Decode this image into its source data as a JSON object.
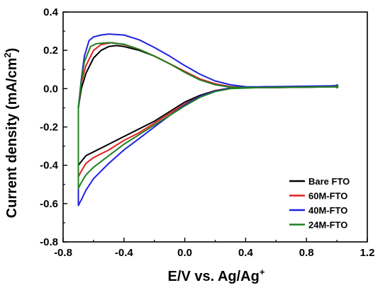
{
  "chart_data": {
    "type": "line",
    "xlabel": "E/V vs. Ag/Ag",
    "xlabel_sup": "+",
    "ylabel": "Current density (mA/cm",
    "ylabel_sup": "2",
    "ylabel_close": ")",
    "xlim": [
      -0.8,
      1.2
    ],
    "ylim": [
      -0.8,
      0.4
    ],
    "xticks": [
      -0.8,
      -0.4,
      0.0,
      0.4,
      0.8,
      1.2
    ],
    "xtick_labels": [
      "-0.8",
      "-0.4",
      "0.0",
      "0.4",
      "0.8",
      "1.2"
    ],
    "yticks": [
      -0.8,
      -0.6,
      -0.4,
      -0.2,
      0.0,
      0.2,
      0.4
    ],
    "ytick_labels": [
      "-0.8",
      "-0.6",
      "-0.4",
      "-0.2",
      "0.0",
      "0.2",
      "0.4"
    ],
    "grid": false,
    "legend_position": "bottom-right",
    "series": [
      {
        "name": "Bare FTO",
        "color": "#000000",
        "points": [
          [
            1.0,
            0.01
          ],
          [
            0.8,
            0.008
          ],
          [
            0.6,
            0.006
          ],
          [
            0.4,
            0.006
          ],
          [
            0.3,
            0.01
          ],
          [
            0.2,
            0.025
          ],
          [
            0.1,
            0.05
          ],
          [
            0.0,
            0.09
          ],
          [
            -0.1,
            0.13
          ],
          [
            -0.2,
            0.17
          ],
          [
            -0.3,
            0.2
          ],
          [
            -0.4,
            0.22
          ],
          [
            -0.45,
            0.225
          ],
          [
            -0.5,
            0.22
          ],
          [
            -0.55,
            0.2
          ],
          [
            -0.6,
            0.16
          ],
          [
            -0.65,
            0.08
          ],
          [
            -0.68,
            0.0
          ],
          [
            -0.7,
            -0.1
          ],
          [
            -0.7,
            -0.25
          ],
          [
            -0.7,
            -0.4
          ],
          [
            -0.68,
            -0.38
          ],
          [
            -0.65,
            -0.35
          ],
          [
            -0.6,
            -0.33
          ],
          [
            -0.5,
            -0.29
          ],
          [
            -0.4,
            -0.25
          ],
          [
            -0.3,
            -0.21
          ],
          [
            -0.2,
            -0.17
          ],
          [
            -0.1,
            -0.12
          ],
          [
            0.0,
            -0.07
          ],
          [
            0.1,
            -0.035
          ],
          [
            0.2,
            -0.01
          ],
          [
            0.3,
            0.003
          ],
          [
            0.5,
            0.006
          ],
          [
            0.7,
            0.008
          ],
          [
            1.0,
            0.01
          ]
        ]
      },
      {
        "name": "60M-FTO",
        "color": "#e02020",
        "points": [
          [
            1.0,
            0.01
          ],
          [
            0.8,
            0.008
          ],
          [
            0.6,
            0.006
          ],
          [
            0.4,
            0.006
          ],
          [
            0.3,
            0.01
          ],
          [
            0.2,
            0.025
          ],
          [
            0.1,
            0.05
          ],
          [
            0.0,
            0.09
          ],
          [
            -0.1,
            0.13
          ],
          [
            -0.2,
            0.17
          ],
          [
            -0.3,
            0.205
          ],
          [
            -0.4,
            0.23
          ],
          [
            -0.48,
            0.24
          ],
          [
            -0.55,
            0.23
          ],
          [
            -0.6,
            0.2
          ],
          [
            -0.65,
            0.12
          ],
          [
            -0.68,
            0.03
          ],
          [
            -0.7,
            -0.1
          ],
          [
            -0.7,
            -0.3
          ],
          [
            -0.7,
            -0.46
          ],
          [
            -0.68,
            -0.43
          ],
          [
            -0.65,
            -0.39
          ],
          [
            -0.6,
            -0.36
          ],
          [
            -0.5,
            -0.32
          ],
          [
            -0.4,
            -0.27
          ],
          [
            -0.3,
            -0.23
          ],
          [
            -0.2,
            -0.18
          ],
          [
            -0.1,
            -0.13
          ],
          [
            0.0,
            -0.08
          ],
          [
            0.1,
            -0.04
          ],
          [
            0.2,
            -0.01
          ],
          [
            0.3,
            0.003
          ],
          [
            0.5,
            0.006
          ],
          [
            0.7,
            0.008
          ],
          [
            1.0,
            0.01
          ]
        ]
      },
      {
        "name": "40M-FTO",
        "color": "#2020e0",
        "points": [
          [
            1.0,
            0.015
          ],
          [
            0.8,
            0.01
          ],
          [
            0.6,
            0.008
          ],
          [
            0.4,
            0.01
          ],
          [
            0.3,
            0.02
          ],
          [
            0.2,
            0.04
          ],
          [
            0.1,
            0.075
          ],
          [
            0.0,
            0.12
          ],
          [
            -0.1,
            0.17
          ],
          [
            -0.2,
            0.215
          ],
          [
            -0.3,
            0.255
          ],
          [
            -0.4,
            0.28
          ],
          [
            -0.5,
            0.285
          ],
          [
            -0.55,
            0.28
          ],
          [
            -0.6,
            0.27
          ],
          [
            -0.63,
            0.25
          ],
          [
            -0.66,
            0.17
          ],
          [
            -0.68,
            0.05
          ],
          [
            -0.7,
            -0.1
          ],
          [
            -0.7,
            -0.35
          ],
          [
            -0.7,
            -0.61
          ],
          [
            -0.68,
            -0.58
          ],
          [
            -0.65,
            -0.53
          ],
          [
            -0.6,
            -0.47
          ],
          [
            -0.5,
            -0.39
          ],
          [
            -0.4,
            -0.32
          ],
          [
            -0.3,
            -0.26
          ],
          [
            -0.2,
            -0.2
          ],
          [
            -0.1,
            -0.14
          ],
          [
            0.0,
            -0.085
          ],
          [
            0.1,
            -0.04
          ],
          [
            0.2,
            -0.012
          ],
          [
            0.3,
            0.003
          ],
          [
            0.5,
            0.01
          ],
          [
            0.7,
            0.012
          ],
          [
            1.0,
            0.015
          ]
        ]
      },
      {
        "name": "24M-FTO",
        "color": "#208020",
        "points": [
          [
            1.0,
            0.01
          ],
          [
            0.8,
            0.008
          ],
          [
            0.6,
            0.006
          ],
          [
            0.4,
            0.006
          ],
          [
            0.3,
            0.008
          ],
          [
            0.2,
            0.02
          ],
          [
            0.1,
            0.045
          ],
          [
            0.0,
            0.085
          ],
          [
            -0.1,
            0.13
          ],
          [
            -0.2,
            0.17
          ],
          [
            -0.3,
            0.205
          ],
          [
            -0.4,
            0.232
          ],
          [
            -0.5,
            0.24
          ],
          [
            -0.58,
            0.235
          ],
          [
            -0.62,
            0.22
          ],
          [
            -0.66,
            0.14
          ],
          [
            -0.68,
            0.04
          ],
          [
            -0.7,
            -0.1
          ],
          [
            -0.7,
            -0.3
          ],
          [
            -0.7,
            -0.52
          ],
          [
            -0.68,
            -0.49
          ],
          [
            -0.65,
            -0.45
          ],
          [
            -0.6,
            -0.41
          ],
          [
            -0.5,
            -0.35
          ],
          [
            -0.4,
            -0.29
          ],
          [
            -0.3,
            -0.24
          ],
          [
            -0.2,
            -0.19
          ],
          [
            -0.1,
            -0.14
          ],
          [
            0.0,
            -0.09
          ],
          [
            0.1,
            -0.045
          ],
          [
            0.2,
            -0.015
          ],
          [
            0.3,
            0.0
          ],
          [
            0.5,
            0.006
          ],
          [
            0.7,
            0.008
          ],
          [
            1.0,
            0.01
          ]
        ]
      }
    ]
  }
}
